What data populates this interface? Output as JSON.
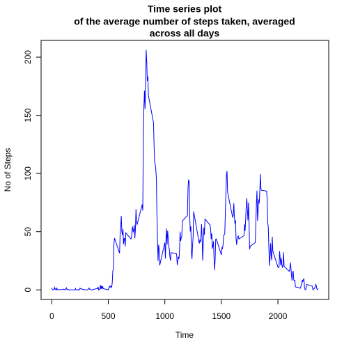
{
  "chart_data": {
    "type": "line",
    "title": [
      "Time series plot",
      "of the average number of steps taken, averaged",
      "across all days"
    ],
    "xlabel": "Time",
    "ylabel": "No of Steps",
    "xlim": [
      -94.2,
      2449.2
    ],
    "ylim": [
      -8.25,
      214.4
    ],
    "xticks": [
      0,
      500,
      1000,
      1500,
      2000
    ],
    "yticks": [
      0,
      50,
      100,
      150,
      200
    ],
    "grid": false,
    "x": [
      0,
      5,
      10,
      15,
      20,
      25,
      30,
      35,
      40,
      45,
      50,
      55,
      100,
      105,
      110,
      115,
      120,
      125,
      130,
      135,
      140,
      145,
      150,
      155,
      200,
      205,
      210,
      215,
      220,
      225,
      230,
      235,
      240,
      245,
      250,
      255,
      300,
      305,
      310,
      315,
      320,
      325,
      330,
      335,
      340,
      345,
      350,
      355,
      400,
      405,
      410,
      415,
      420,
      425,
      430,
      435,
      440,
      445,
      450,
      455,
      500,
      505,
      510,
      515,
      520,
      525,
      530,
      535,
      540,
      545,
      550,
      555,
      600,
      605,
      610,
      615,
      620,
      625,
      630,
      635,
      640,
      645,
      650,
      655,
      700,
      705,
      710,
      715,
      720,
      725,
      730,
      735,
      740,
      745,
      750,
      755,
      800,
      805,
      810,
      815,
      820,
      825,
      830,
      835,
      840,
      845,
      850,
      855,
      900,
      905,
      910,
      915,
      920,
      925,
      930,
      935,
      940,
      945,
      950,
      955,
      1000,
      1005,
      1010,
      1015,
      1020,
      1025,
      1030,
      1035,
      1040,
      1045,
      1050,
      1055,
      1100,
      1105,
      1110,
      1115,
      1120,
      1125,
      1130,
      1135,
      1140,
      1145,
      1150,
      1155,
      1200,
      1205,
      1210,
      1215,
      1220,
      1225,
      1230,
      1235,
      1240,
      1245,
      1250,
      1255,
      1300,
      1305,
      1310,
      1315,
      1320,
      1325,
      1330,
      1335,
      1340,
      1345,
      1350,
      1355,
      1400,
      1405,
      1410,
      1415,
      1420,
      1425,
      1430,
      1435,
      1440,
      1445,
      1450,
      1455,
      1500,
      1505,
      1510,
      1515,
      1520,
      1525,
      1530,
      1535,
      1540,
      1545,
      1550,
      1555,
      1600,
      1605,
      1610,
      1615,
      1620,
      1625,
      1630,
      1635,
      1640,
      1645,
      1650,
      1655,
      1700,
      1705,
      1710,
      1715,
      1720,
      1725,
      1730,
      1735,
      1740,
      1745,
      1750,
      1755,
      1800,
      1805,
      1810,
      1815,
      1820,
      1825,
      1830,
      1835,
      1840,
      1845,
      1850,
      1855,
      1900,
      1905,
      1910,
      1915,
      1920,
      1925,
      1930,
      1935,
      1940,
      1945,
      1950,
      1955,
      2000,
      2005,
      2010,
      2015,
      2020,
      2025,
      2030,
      2035,
      2040,
      2045,
      2050,
      2055,
      2100,
      2105,
      2110,
      2115,
      2120,
      2125,
      2130,
      2135,
      2140,
      2145,
      2150,
      2155,
      2200,
      2205,
      2210,
      2215,
      2220,
      2225,
      2230,
      2235,
      2240,
      2245,
      2250,
      2255,
      2300,
      2305,
      2310,
      2315,
      2320,
      2325,
      2330,
      2335,
      2340,
      2345,
      2350,
      2355
    ],
    "series": [
      {
        "name": "steps",
        "color": "#0000ff",
        "values": [
          1.7,
          0.34,
          0.13,
          0.15,
          0.08,
          2.1,
          0.53,
          0.87,
          0,
          1.47,
          0.3,
          0.13,
          0.32,
          0.68,
          0.15,
          0.34,
          0,
          1.1,
          1.8,
          0.17,
          0.23,
          0.37,
          0.26,
          0,
          0,
          0,
          1.13,
          0,
          0,
          0.13,
          0,
          0.23,
          0,
          0,
          1.55,
          0.94,
          0,
          0,
          0,
          0,
          0.21,
          0.62,
          1.62,
          0.58,
          0.49,
          0.08,
          0,
          0,
          1.19,
          0.94,
          2.57,
          0,
          0.34,
          0.36,
          4.1,
          0.66,
          3.5,
          0.83,
          3.1,
          1.1,
          0,
          1.57,
          3.0,
          2.25,
          3.3,
          2.96,
          2.09,
          6.06,
          16.0,
          18.3,
          39.5,
          44.5,
          31.5,
          49.3,
          53.8,
          63.5,
          50.0,
          47.1,
          52.2,
          39.3,
          44.0,
          44.2,
          37.4,
          49.0,
          43.8,
          44.4,
          50.5,
          54.5,
          49.9,
          50.98,
          55.7,
          44.3,
          52.3,
          69.5,
          57.8,
          56.2,
          73.4,
          68.2,
          129.4,
          157.5,
          171.2,
          155.4,
          177.3,
          206.2,
          195.9,
          179.6,
          183.4,
          167.0,
          143.5,
          124.0,
          109.1,
          108.1,
          103.7,
          95.97,
          66.2,
          45.2,
          24.8,
          38.75,
          34.98,
          21.06,
          40.6,
          26.98,
          42.4,
          52.7,
          38.9,
          50.8,
          44.3,
          37.4,
          34.7,
          28.3,
          25.1,
          31.9,
          31.4,
          29.7,
          21.3,
          25.5,
          28.4,
          26.5,
          33.4,
          50.0,
          42.0,
          44.6,
          46.0,
          59.2,
          63.9,
          87.7,
          94.8,
          92.8,
          63.4,
          50.2,
          54.5,
          32.4,
          26.5,
          37.7,
          45.1,
          67.3,
          42.3,
          39.9,
          43.3,
          40.98,
          46.2,
          56.4,
          42.8,
          25.1,
          39.97,
          53.5,
          47.3,
          60.8,
          55.8,
          51.96,
          43.6,
          48.7,
          35.5,
          37.5,
          41.8,
          27.5,
          17.1,
          26.1,
          43.6,
          43.8,
          30.0,
          36.1,
          35.5,
          38.8,
          45.96,
          47.75,
          48.1,
          65.3,
          82.9,
          98.7,
          102.1,
          83.96,
          62.1,
          64.1,
          74.5,
          63.2,
          56.9,
          59.8,
          43.9,
          38.6,
          44.7,
          45.5,
          46.2,
          43.7,
          46.6,
          56.3,
          50.7,
          61.2,
          72.7,
          78.9,
          68.9,
          59.7,
          75.1,
          56.5,
          34.8,
          37.5,
          40.7,
          58.0,
          74.7,
          85.3,
          59.3,
          67.8,
          77.7,
          74.2,
          85.3,
          99.5,
          86.6,
          85.6,
          84.9,
          77.8,
          58.0,
          53.4,
          36.3,
          20.7,
          27.4,
          40.0,
          30.2,
          25.5,
          45.7,
          33.5,
          19.6,
          19.0,
          19.3,
          33.3,
          26.8,
          21.2,
          27.3,
          21.3,
          19.5,
          21.3,
          32.3,
          20.2,
          15.9,
          17.2,
          23.5,
          19.2,
          12.5,
          8.0,
          14.7,
          16.3,
          8.7,
          7.8,
          8.1,
          2.6,
          1.5,
          3.7,
          4.8,
          8.5,
          7.1,
          8.7,
          9.75,
          2.2,
          0.3,
          0.1,
          1.6,
          4.6,
          3.3,
          2.8,
          0,
          0.8,
          0.96,
          1.6,
          2.6,
          4.7,
          3.3,
          0.64,
          0.23,
          1.08
        ]
      }
    ]
  }
}
